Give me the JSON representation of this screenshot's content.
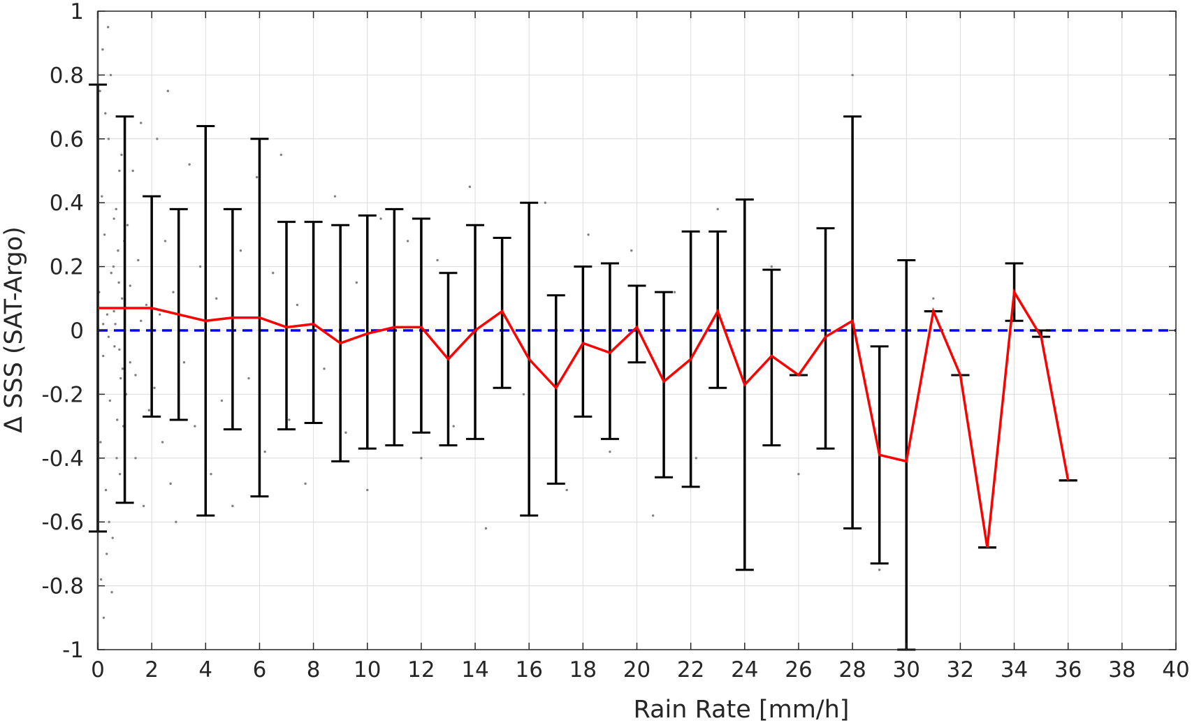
{
  "chart_data": {
    "type": "scatter",
    "xlabel": "Rain Rate [mm/h]",
    "ylabel": "Δ SSS (SAT-Argo)",
    "xlim": [
      0,
      40
    ],
    "ylim": [
      -1,
      1
    ],
    "x_ticks": [
      "0",
      "2",
      "4",
      "6",
      "8",
      "10",
      "12",
      "14",
      "16",
      "18",
      "20",
      "22",
      "24",
      "26",
      "28",
      "30",
      "32",
      "34",
      "36",
      "38",
      "40"
    ],
    "y_ticks": [
      "-1",
      "-0.8",
      "-0.6",
      "-0.4",
      "-0.2",
      "0",
      "0.2",
      "0.4",
      "0.6",
      "0.8",
      "1"
    ],
    "grid": true,
    "reference_line": {
      "y": 0,
      "color": "#0000ff",
      "style": "dashed"
    },
    "scatter_color": "#808080",
    "mean_line_color": "#ff0000",
    "errorbar_color": "#000000",
    "scatter_points": [
      [
        0.05,
        0.12
      ],
      [
        0.1,
        -0.35
      ],
      [
        0.15,
        0.42
      ],
      [
        0.2,
        -0.08
      ],
      [
        0.25,
        0.3
      ],
      [
        0.3,
        -0.5
      ],
      [
        0.35,
        0.05
      ],
      [
        0.4,
        0.6
      ],
      [
        0.45,
        -0.22
      ],
      [
        0.5,
        0.18
      ],
      [
        0.55,
        -0.65
      ],
      [
        0.6,
        0.35
      ],
      [
        0.65,
        0.02
      ],
      [
        0.7,
        -0.4
      ],
      [
        0.75,
        0.25
      ],
      [
        0.8,
        0.5
      ],
      [
        0.85,
        -0.15
      ],
      [
        0.9,
        0.1
      ],
      [
        0.95,
        -0.3
      ],
      [
        1.0,
        0.45
      ],
      [
        0.08,
        0.75
      ],
      [
        0.12,
        -0.78
      ],
      [
        0.18,
        0.88
      ],
      [
        0.22,
        -0.9
      ],
      [
        0.28,
        0.68
      ],
      [
        0.33,
        -0.7
      ],
      [
        0.38,
        0.95
      ],
      [
        0.42,
        -0.6
      ],
      [
        0.48,
        0.8
      ],
      [
        0.52,
        -0.82
      ],
      [
        0.58,
        0.2
      ],
      [
        0.62,
        -0.05
      ],
      [
        0.68,
        0.38
      ],
      [
        0.72,
        -0.28
      ],
      [
        0.78,
        0.15
      ],
      [
        0.82,
        -0.45
      ],
      [
        0.88,
        0.55
      ],
      [
        0.92,
        -0.12
      ],
      [
        0.98,
        0.28
      ],
      [
        1.05,
        -0.2
      ],
      [
        1.1,
        0.33
      ],
      [
        1.2,
        -0.1
      ],
      [
        1.3,
        0.5
      ],
      [
        1.4,
        -0.4
      ],
      [
        1.5,
        0.22
      ],
      [
        1.6,
        0.65
      ],
      [
        1.7,
        -0.55
      ],
      [
        1.8,
        0.08
      ],
      [
        1.9,
        -0.25
      ],
      [
        2.0,
        0.4
      ],
      [
        2.1,
        -0.18
      ],
      [
        2.2,
        0.6
      ],
      [
        2.3,
        0.05
      ],
      [
        2.4,
        -0.35
      ],
      [
        2.5,
        0.28
      ],
      [
        2.6,
        0.75
      ],
      [
        2.7,
        -0.48
      ],
      [
        2.8,
        0.12
      ],
      [
        2.9,
        -0.6
      ],
      [
        3.0,
        0.35
      ],
      [
        3.2,
        -0.1
      ],
      [
        3.4,
        0.52
      ],
      [
        3.6,
        -0.3
      ],
      [
        3.8,
        0.2
      ],
      [
        4.0,
        0.62
      ],
      [
        4.2,
        -0.45
      ],
      [
        4.4,
        0.1
      ],
      [
        4.6,
        -0.22
      ],
      [
        4.8,
        0.38
      ],
      [
        5.0,
        -0.55
      ],
      [
        5.3,
        0.25
      ],
      [
        5.6,
        -0.15
      ],
      [
        5.9,
        0.48
      ],
      [
        6.2,
        -0.38
      ],
      [
        6.5,
        0.18
      ],
      [
        6.8,
        0.55
      ],
      [
        7.1,
        -0.28
      ],
      [
        7.4,
        0.08
      ],
      [
        7.7,
        -0.48
      ],
      [
        8.0,
        0.3
      ],
      [
        8.4,
        -0.12
      ],
      [
        8.8,
        0.42
      ],
      [
        9.2,
        -0.32
      ],
      [
        9.6,
        0.15
      ],
      [
        10.0,
        -0.5
      ],
      [
        10.5,
        0.35
      ],
      [
        11.0,
        -0.2
      ],
      [
        11.5,
        0.28
      ],
      [
        12.0,
        -0.4
      ],
      [
        12.6,
        0.22
      ],
      [
        13.2,
        -0.3
      ],
      [
        13.8,
        0.45
      ],
      [
        14.4,
        -0.62
      ],
      [
        15.0,
        0.18
      ],
      [
        15.8,
        -0.2
      ],
      [
        16.6,
        0.4
      ],
      [
        17.4,
        -0.5
      ],
      [
        18.2,
        0.3
      ],
      [
        19.0,
        -0.38
      ],
      [
        19.8,
        0.25
      ],
      [
        20.6,
        -0.58
      ],
      [
        21.4,
        0.12
      ],
      [
        22.2,
        -0.4
      ],
      [
        23.0,
        0.38
      ],
      [
        24.0,
        -0.65
      ],
      [
        25.0,
        0.2
      ],
      [
        26.0,
        -0.45
      ],
      [
        27.0,
        0.3
      ],
      [
        28.0,
        0.8
      ],
      [
        29.0,
        -0.75
      ],
      [
        30.0,
        -0.85
      ],
      [
        31.0,
        0.1
      ],
      [
        0.2,
        0.02
      ],
      [
        0.4,
        -0.02
      ],
      [
        0.6,
        0.06
      ],
      [
        0.8,
        -0.06
      ],
      [
        1.0,
        0.0
      ],
      [
        1.2,
        0.14
      ],
      [
        1.4,
        -0.14
      ],
      [
        1.6,
        0.03
      ]
    ],
    "series": [
      {
        "type": "errorbar",
        "x": [
          0,
          1,
          2,
          3,
          4,
          5,
          6,
          7,
          8,
          9,
          10,
          11,
          12,
          13,
          14,
          15,
          16,
          17,
          18,
          19,
          20,
          21,
          22,
          23,
          24,
          25,
          26,
          27,
          28,
          29,
          30,
          31,
          32,
          33,
          34,
          35,
          36
        ],
        "upper": [
          0.77,
          0.67,
          0.42,
          0.38,
          0.64,
          0.38,
          0.6,
          0.34,
          0.34,
          0.33,
          0.36,
          0.38,
          0.35,
          0.18,
          0.33,
          0.29,
          0.4,
          0.11,
          0.2,
          0.21,
          0.14,
          0.12,
          0.31,
          0.31,
          0.41,
          0.19,
          -0.14,
          0.32,
          0.67,
          -0.05,
          0.22,
          0.06,
          -0.14,
          -0.68,
          0.21,
          0.0,
          -0.47
        ],
        "lower": [
          -0.63,
          -0.54,
          -0.27,
          -0.28,
          -0.58,
          -0.31,
          -0.52,
          -0.31,
          -0.29,
          -0.41,
          -0.37,
          -0.36,
          -0.32,
          -0.36,
          -0.34,
          -0.18,
          -0.58,
          -0.48,
          -0.27,
          -0.34,
          -0.1,
          -0.46,
          -0.49,
          -0.18,
          -0.75,
          -0.36,
          -0.14,
          -0.37,
          -0.62,
          -0.73,
          -1.0,
          0.06,
          -0.14,
          -0.68,
          0.03,
          -0.02,
          -0.47
        ]
      },
      {
        "type": "line",
        "x": [
          0,
          1,
          2,
          3,
          4,
          5,
          6,
          7,
          8,
          9,
          10,
          11,
          12,
          13,
          14,
          15,
          16,
          17,
          18,
          19,
          20,
          21,
          22,
          23,
          24,
          25,
          26,
          27,
          28,
          29,
          30,
          31,
          32,
          33,
          34,
          35,
          36
        ],
        "values": [
          0.07,
          0.07,
          0.07,
          0.05,
          0.03,
          0.04,
          0.04,
          0.01,
          0.02,
          -0.04,
          -0.01,
          0.01,
          0.01,
          -0.09,
          0.0,
          0.06,
          -0.09,
          -0.18,
          -0.04,
          -0.07,
          0.01,
          -0.16,
          -0.09,
          0.06,
          -0.17,
          -0.08,
          -0.14,
          -0.02,
          0.03,
          -0.39,
          -0.41,
          0.06,
          -0.14,
          -0.68,
          0.12,
          -0.02,
          -0.47
        ]
      }
    ]
  }
}
